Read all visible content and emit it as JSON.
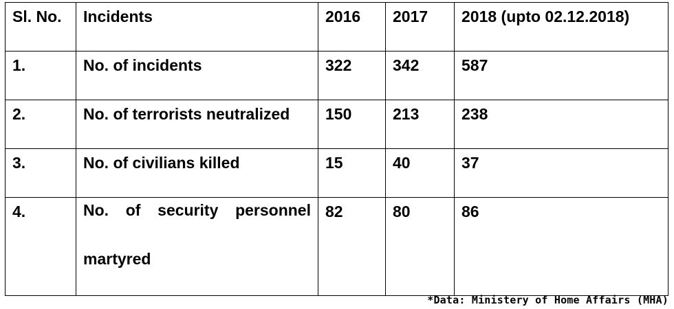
{
  "table": {
    "headers": [
      "Sl. No.",
      "Incidents",
      "2016",
      "2017",
      "2018 (upto 02.12.2018)"
    ],
    "rows": [
      {
        "sl": "1.",
        "incident": "No. of incidents",
        "y2016": "322",
        "y2017": "342",
        "y2018": "587"
      },
      {
        "sl": "2.",
        "incident": "No. of terrorists neutralized",
        "y2016": "150",
        "y2017": "213",
        "y2018": "238"
      },
      {
        "sl": "3.",
        "incident": "No. of civilians killed",
        "y2016": "15",
        "y2017": "40",
        "y2018": "37"
      },
      {
        "sl": "4.",
        "incident": "No. of security personnel martyred",
        "y2016": "82",
        "y2017": "80",
        "y2018": "86"
      }
    ]
  },
  "source_note": "*Data: Ministery of Home Affairs (MHA)"
}
